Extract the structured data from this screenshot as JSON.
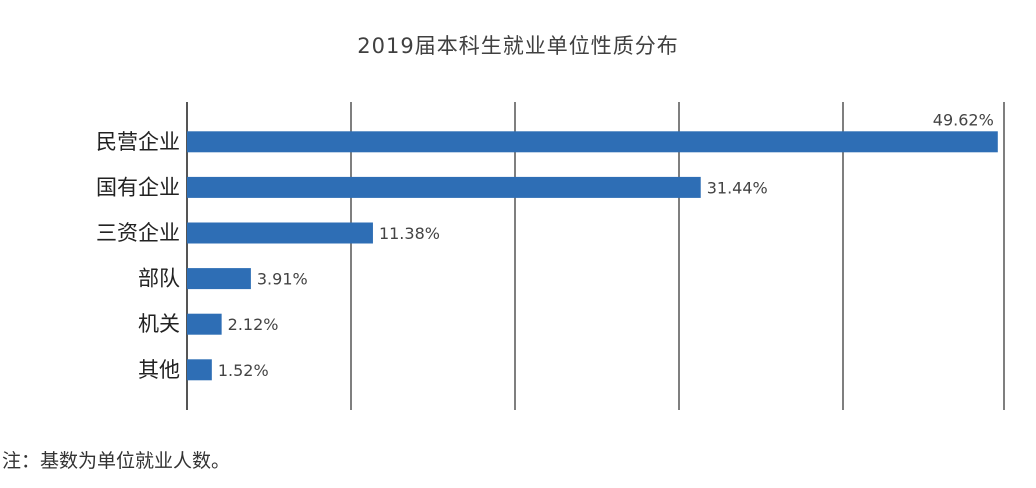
{
  "chart_data": {
    "type": "bar",
    "orientation": "horizontal",
    "title": "2019届本科生就业单位性质分布",
    "categories": [
      "民营企业",
      "国有企业",
      "三资企业",
      "部队",
      "机关",
      "其他"
    ],
    "values": [
      49.62,
      31.44,
      11.38,
      3.91,
      2.12,
      1.52
    ],
    "data_labels": [
      "49.62%",
      "31.44%",
      "11.38%",
      "3.91%",
      "2.12%",
      "1.52%"
    ],
    "xlim": [
      0,
      50
    ],
    "grid": "vertical",
    "bar_color": "#2e6eb5",
    "grid_color": "#555555"
  },
  "note": "注：基数为单位就业人数。"
}
